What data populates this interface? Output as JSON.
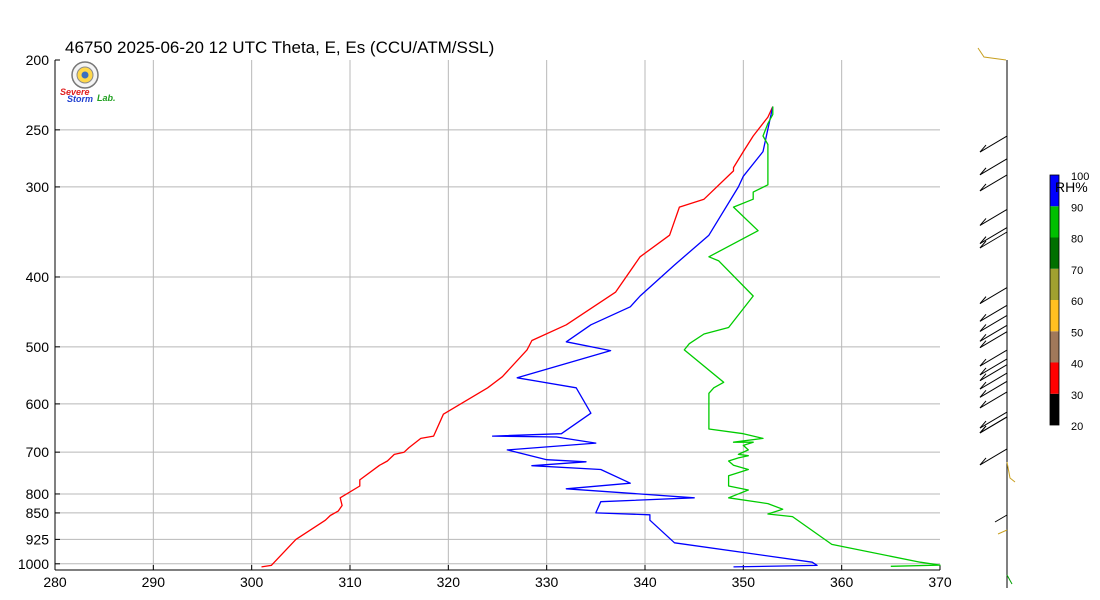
{
  "chart_data": {
    "type": "line",
    "title": "46750  2025-06-20 12 UTC  Theta, E, Es (CCU/ATM/SSL)",
    "xlim": [
      280,
      370
    ],
    "x_ticks": [
      "280",
      "290",
      "300",
      "310",
      "320",
      "330",
      "340",
      "350",
      "360",
      "370"
    ],
    "x_tick_values": [
      280,
      290,
      300,
      310,
      320,
      330,
      340,
      350,
      360,
      370
    ],
    "y_scale": "log-pressure",
    "ylim": [
      200,
      1020
    ],
    "y_ticks": [
      "200",
      "250",
      "300",
      "400",
      "500",
      "600",
      "700",
      "800",
      "850",
      "925",
      "1000"
    ],
    "y_tick_values": [
      200,
      250,
      300,
      400,
      500,
      600,
      700,
      800,
      850,
      925,
      1000
    ],
    "grid": true,
    "series": [
      {
        "color": "#ff0000",
        "points": [
          [
            301.0,
            1010
          ],
          [
            302.0,
            1005
          ],
          [
            304.5,
            925
          ],
          [
            307.5,
            870
          ],
          [
            308,
            857
          ],
          [
            308.8,
            845
          ],
          [
            309.2,
            830
          ],
          [
            309.0,
            810
          ],
          [
            311,
            780
          ],
          [
            311,
            765
          ],
          [
            313,
            730
          ],
          [
            313.8,
            720
          ],
          [
            314.5,
            705
          ],
          [
            315.5,
            700
          ],
          [
            316,
            690
          ],
          [
            317.2,
            670
          ],
          [
            318.5,
            665
          ],
          [
            319.5,
            620
          ],
          [
            324,
            570
          ],
          [
            325.5,
            550
          ],
          [
            328,
            505
          ],
          [
            328.5,
            490
          ],
          [
            332,
            466
          ],
          [
            337,
            420
          ],
          [
            339.5,
            375
          ],
          [
            342.5,
            350
          ],
          [
            343.5,
            320
          ],
          [
            346,
            312
          ],
          [
            349,
            285
          ],
          [
            349,
            282
          ],
          [
            350,
            268
          ],
          [
            351,
            255
          ],
          [
            352.5,
            240
          ],
          [
            353,
            232
          ]
        ]
      },
      {
        "color": "#0000ff",
        "points": [
          [
            349,
            1010
          ],
          [
            357.5,
            1005
          ],
          [
            357,
            995
          ],
          [
            343,
            935
          ],
          [
            340.5,
            870
          ],
          [
            340.5,
            855
          ],
          [
            335,
            850
          ],
          [
            335.5,
            820
          ],
          [
            345,
            810
          ],
          [
            332,
            787
          ],
          [
            338.5,
            773
          ],
          [
            335.5,
            740
          ],
          [
            328.5,
            731
          ],
          [
            334,
            722
          ],
          [
            330,
            717
          ],
          [
            326,
            695
          ],
          [
            335,
            680
          ],
          [
            331,
            667
          ],
          [
            324.5,
            665
          ],
          [
            331.5,
            660
          ],
          [
            334.5,
            618
          ],
          [
            333,
            570
          ],
          [
            327,
            552
          ],
          [
            336.5,
            506
          ],
          [
            332,
            492
          ],
          [
            334.5,
            466
          ],
          [
            338.5,
            440
          ],
          [
            339.5,
            425
          ],
          [
            343,
            385
          ],
          [
            346.5,
            350
          ],
          [
            349.5,
            300
          ],
          [
            350,
            290
          ],
          [
            352,
            268
          ],
          [
            353,
            232
          ]
        ]
      },
      {
        "color": "#00cc00",
        "points": [
          [
            365,
            1008
          ],
          [
            370,
            1004
          ],
          [
            368,
            995
          ],
          [
            359,
            940
          ],
          [
            355,
            860
          ],
          [
            352.5,
            853
          ],
          [
            354,
            840
          ],
          [
            352.5,
            825
          ],
          [
            348.5,
            810
          ],
          [
            350.5,
            790
          ],
          [
            348.5,
            780
          ],
          [
            348.5,
            755
          ],
          [
            350.5,
            740
          ],
          [
            349,
            730
          ],
          [
            348.5,
            720
          ],
          [
            349.5,
            713
          ],
          [
            350.5,
            708
          ],
          [
            349.5,
            705
          ],
          [
            350.5,
            695
          ],
          [
            350,
            685
          ],
          [
            351,
            678
          ],
          [
            349,
            678
          ],
          [
            352,
            670
          ],
          [
            350,
            660
          ],
          [
            346.5,
            650
          ],
          [
            346.5,
            618
          ],
          [
            346.5,
            580
          ],
          [
            347,
            570
          ],
          [
            348,
            560
          ],
          [
            344,
            505
          ],
          [
            344.5,
            495
          ],
          [
            346,
            480
          ],
          [
            348.5,
            470
          ],
          [
            351,
            425
          ],
          [
            347.5,
            380
          ],
          [
            346.5,
            375
          ],
          [
            351.5,
            345
          ],
          [
            349,
            320
          ],
          [
            351,
            312
          ],
          [
            351,
            305
          ],
          [
            352.5,
            298
          ],
          [
            352.5,
            278
          ],
          [
            352.5,
            262
          ],
          [
            352,
            255
          ],
          [
            352.5,
            245
          ],
          [
            353,
            238
          ],
          [
            353,
            232
          ]
        ]
      }
    ],
    "colorbar": {
      "label": "RH%",
      "ticks": [
        "20",
        "30",
        "40",
        "50",
        "60",
        "70",
        "80",
        "90",
        "100"
      ],
      "bands": [
        "#000000",
        "#ff0000",
        "#a0785a",
        "#ffc020",
        "#a0a030",
        "#007000",
        "#00c000",
        "#0000ff"
      ]
    },
    "wind_barbs": {
      "pressures": [
        265,
        285,
        300,
        335,
        355,
        360,
        430,
        455,
        470,
        485,
        495,
        525,
        540,
        550,
        565,
        580,
        600,
        640,
        650,
        650,
        720
      ],
      "colors": [
        "#000000"
      ]
    },
    "logo": {
      "line1": "Severe",
      "line2": "Storm",
      "line3": "Lab."
    }
  }
}
